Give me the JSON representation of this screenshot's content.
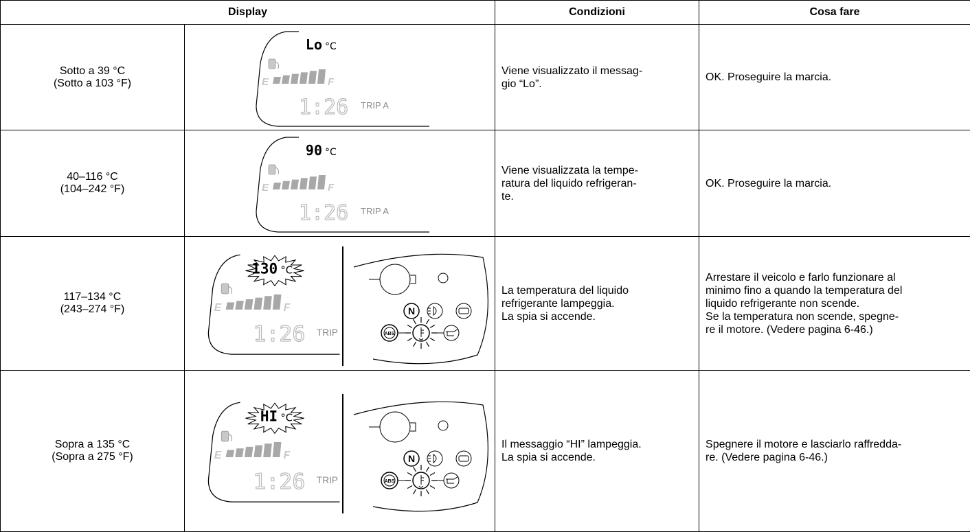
{
  "header": {
    "display": "Display",
    "conditions": "Condizioni",
    "action": "Cosa fare"
  },
  "rows": [
    {
      "range": [
        "Sotto a 39 °C",
        "(Sotto a 103 °F)"
      ],
      "lcd": {
        "temp": "Lo",
        "unit": "°C",
        "e": "E",
        "f": "F",
        "clock": "1:26",
        "trip": "TRIP A"
      },
      "conditions": [
        "Viene visualizzato il messag-",
        "gio “Lo”."
      ],
      "action": [
        "OK. Proseguire la marcia."
      ]
    },
    {
      "range": [
        "40–116 °C",
        "(104–242 °F)"
      ],
      "lcd": {
        "temp": "90",
        "unit": "°C",
        "e": "E",
        "f": "F",
        "clock": "1:26",
        "trip": "TRIP A"
      },
      "conditions": [
        "Viene visualizzata la tempe-",
        "ratura del liquido refrigeran-",
        "te."
      ],
      "action": [
        "OK. Proseguire la marcia."
      ]
    },
    {
      "range": [
        "117–134 °C",
        "(243–274 °F)"
      ],
      "lcd": {
        "temp": "130",
        "unit": "°C",
        "e": "E",
        "f": "F",
        "clock": "1:26",
        "trip": "TRIP"
      },
      "panel": {
        "n": "N",
        "abs": "ABS"
      },
      "conditions": [
        "La temperatura del liquido",
        "refrigerante lampeggia.",
        "La spia si accende."
      ],
      "action": [
        "Arrestare il veicolo e farlo funzionare al",
        "minimo fino a quando la temperatura del",
        "liquido refrigerante non scende.",
        "Se la temperatura non scende, spegne-",
        "re il motore. (Vedere pagina 6-46.)"
      ]
    },
    {
      "range": [
        "Sopra a 135 °C",
        "(Sopra a 275 °F)"
      ],
      "lcd": {
        "temp": "HI",
        "unit": "°C",
        "e": "E",
        "f": "F",
        "clock": "1:26",
        "trip": "TRIP"
      },
      "panel": {
        "n": "N",
        "abs": "ABS"
      },
      "conditions": [
        "Il messaggio “HI” lampeggia.",
        "La spia si accende."
      ],
      "action": [
        "Spegnere il motore e lasciarlo raffredda-",
        "re. (Vedere pagina 6-46.)"
      ]
    }
  ]
}
